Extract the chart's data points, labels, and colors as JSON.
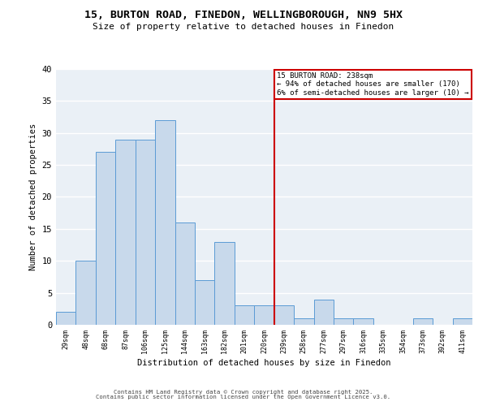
{
  "title1": "15, BURTON ROAD, FINEDON, WELLINGBOROUGH, NN9 5HX",
  "title2": "Size of property relative to detached houses in Finedon",
  "xlabel": "Distribution of detached houses by size in Finedon",
  "ylabel": "Number of detached properties",
  "bin_labels": [
    "29sqm",
    "48sqm",
    "68sqm",
    "87sqm",
    "106sqm",
    "125sqm",
    "144sqm",
    "163sqm",
    "182sqm",
    "201sqm",
    "220sqm",
    "239sqm",
    "258sqm",
    "277sqm",
    "297sqm",
    "316sqm",
    "335sqm",
    "354sqm",
    "373sqm",
    "392sqm",
    "411sqm"
  ],
  "bar_heights": [
    2,
    10,
    27,
    29,
    29,
    32,
    16,
    7,
    13,
    3,
    3,
    3,
    1,
    4,
    1,
    1,
    0,
    0,
    1,
    0,
    1
  ],
  "bar_color": "#c8d9eb",
  "bar_edge_color": "#5b9bd5",
  "annotation_title": "15 BURTON ROAD: 238sqm",
  "annotation_line1": "← 94% of detached houses are smaller (170)",
  "annotation_line2": "6% of semi-detached houses are larger (10) →",
  "annotation_box_color": "#cc0000",
  "ref_line_bin_index": 10.5,
  "ylim": [
    0,
    40
  ],
  "yticks": [
    0,
    5,
    10,
    15,
    20,
    25,
    30,
    35,
    40
  ],
  "ax_bg_color": "#eaf0f6",
  "grid_color": "#ffffff",
  "footer1": "Contains HM Land Registry data © Crown copyright and database right 2025.",
  "footer2": "Contains public sector information licensed under the Open Government Licence v3.0."
}
